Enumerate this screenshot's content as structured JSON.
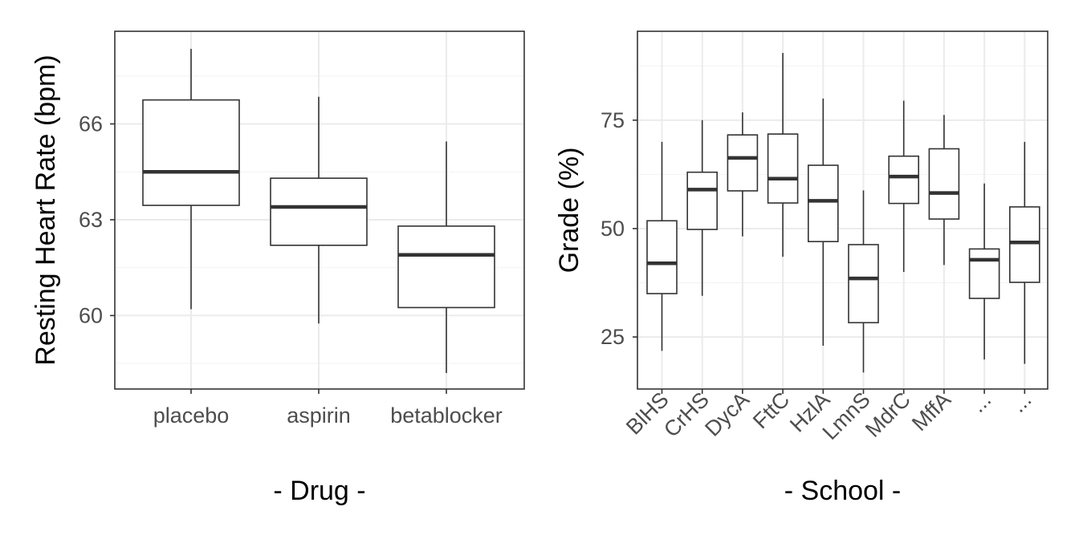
{
  "chart_data": [
    {
      "type": "box",
      "xlabel": "- Drug -",
      "ylabel": "Resting Heart Rate (bpm)",
      "ylim": [
        57.7,
        68.9
      ],
      "yticks": [
        60,
        63,
        66
      ],
      "y_minor_grid": [
        58.5,
        61.5,
        64.5,
        67.5
      ],
      "grid": true,
      "categories": [
        "placebo",
        "aspirin",
        "betablocker"
      ],
      "boxes": [
        {
          "category": "placebo",
          "min": 60.2,
          "q1": 63.45,
          "median": 64.5,
          "q3": 66.75,
          "max": 68.35
        },
        {
          "category": "aspirin",
          "min": 59.75,
          "q1": 62.2,
          "median": 63.4,
          "q3": 64.3,
          "max": 66.85
        },
        {
          "category": "betablocker",
          "min": 58.2,
          "q1": 60.25,
          "median": 61.9,
          "q3": 62.8,
          "max": 65.45
        }
      ]
    },
    {
      "type": "box",
      "xlabel": "- School -",
      "ylabel": "Grade (%)",
      "ylim": [
        13,
        95.5
      ],
      "yticks": [
        25,
        50,
        75
      ],
      "y_minor_grid": [
        37.5,
        62.5,
        87.5
      ],
      "grid": true,
      "categories": [
        "BlHS",
        "CrHS",
        "DycA",
        "FttC",
        "HzlA",
        "LmnS",
        "MdrC",
        "MffA",
        "...",
        "..."
      ],
      "boxes": [
        {
          "category": "BlHS",
          "min": 21.8,
          "q1": 35,
          "median": 42,
          "q3": 51.8,
          "max": 70
        },
        {
          "category": "CrHS",
          "min": 34.5,
          "q1": 49.8,
          "median": 59,
          "q3": 63,
          "max": 75
        },
        {
          "category": "DycA",
          "min": 48.2,
          "q1": 58.7,
          "median": 66.3,
          "q3": 71.6,
          "max": 76.8
        },
        {
          "category": "FttC",
          "min": 43.5,
          "q1": 55.9,
          "median": 61.5,
          "q3": 71.8,
          "max": 90.5
        },
        {
          "category": "HzlA",
          "min": 23,
          "q1": 47,
          "median": 56.4,
          "q3": 64.6,
          "max": 80
        },
        {
          "category": "LmnS",
          "min": 16.8,
          "q1": 28.3,
          "median": 38.5,
          "q3": 46.3,
          "max": 58.8
        },
        {
          "category": "MdrC",
          "min": 40,
          "q1": 55.8,
          "median": 62,
          "q3": 66.7,
          "max": 79.5
        },
        {
          "category": "MffA",
          "min": 41.6,
          "q1": 52.2,
          "median": 58.2,
          "q3": 68.4,
          "max": 76.2
        },
        {
          "category": "...",
          "min": 19.8,
          "q1": 33.9,
          "median": 42.8,
          "q3": 45.3,
          "max": 60.4
        },
        {
          "category": "...",
          "min": 18.8,
          "q1": 37.6,
          "median": 46.8,
          "q3": 55,
          "max": 70
        }
      ]
    }
  ]
}
